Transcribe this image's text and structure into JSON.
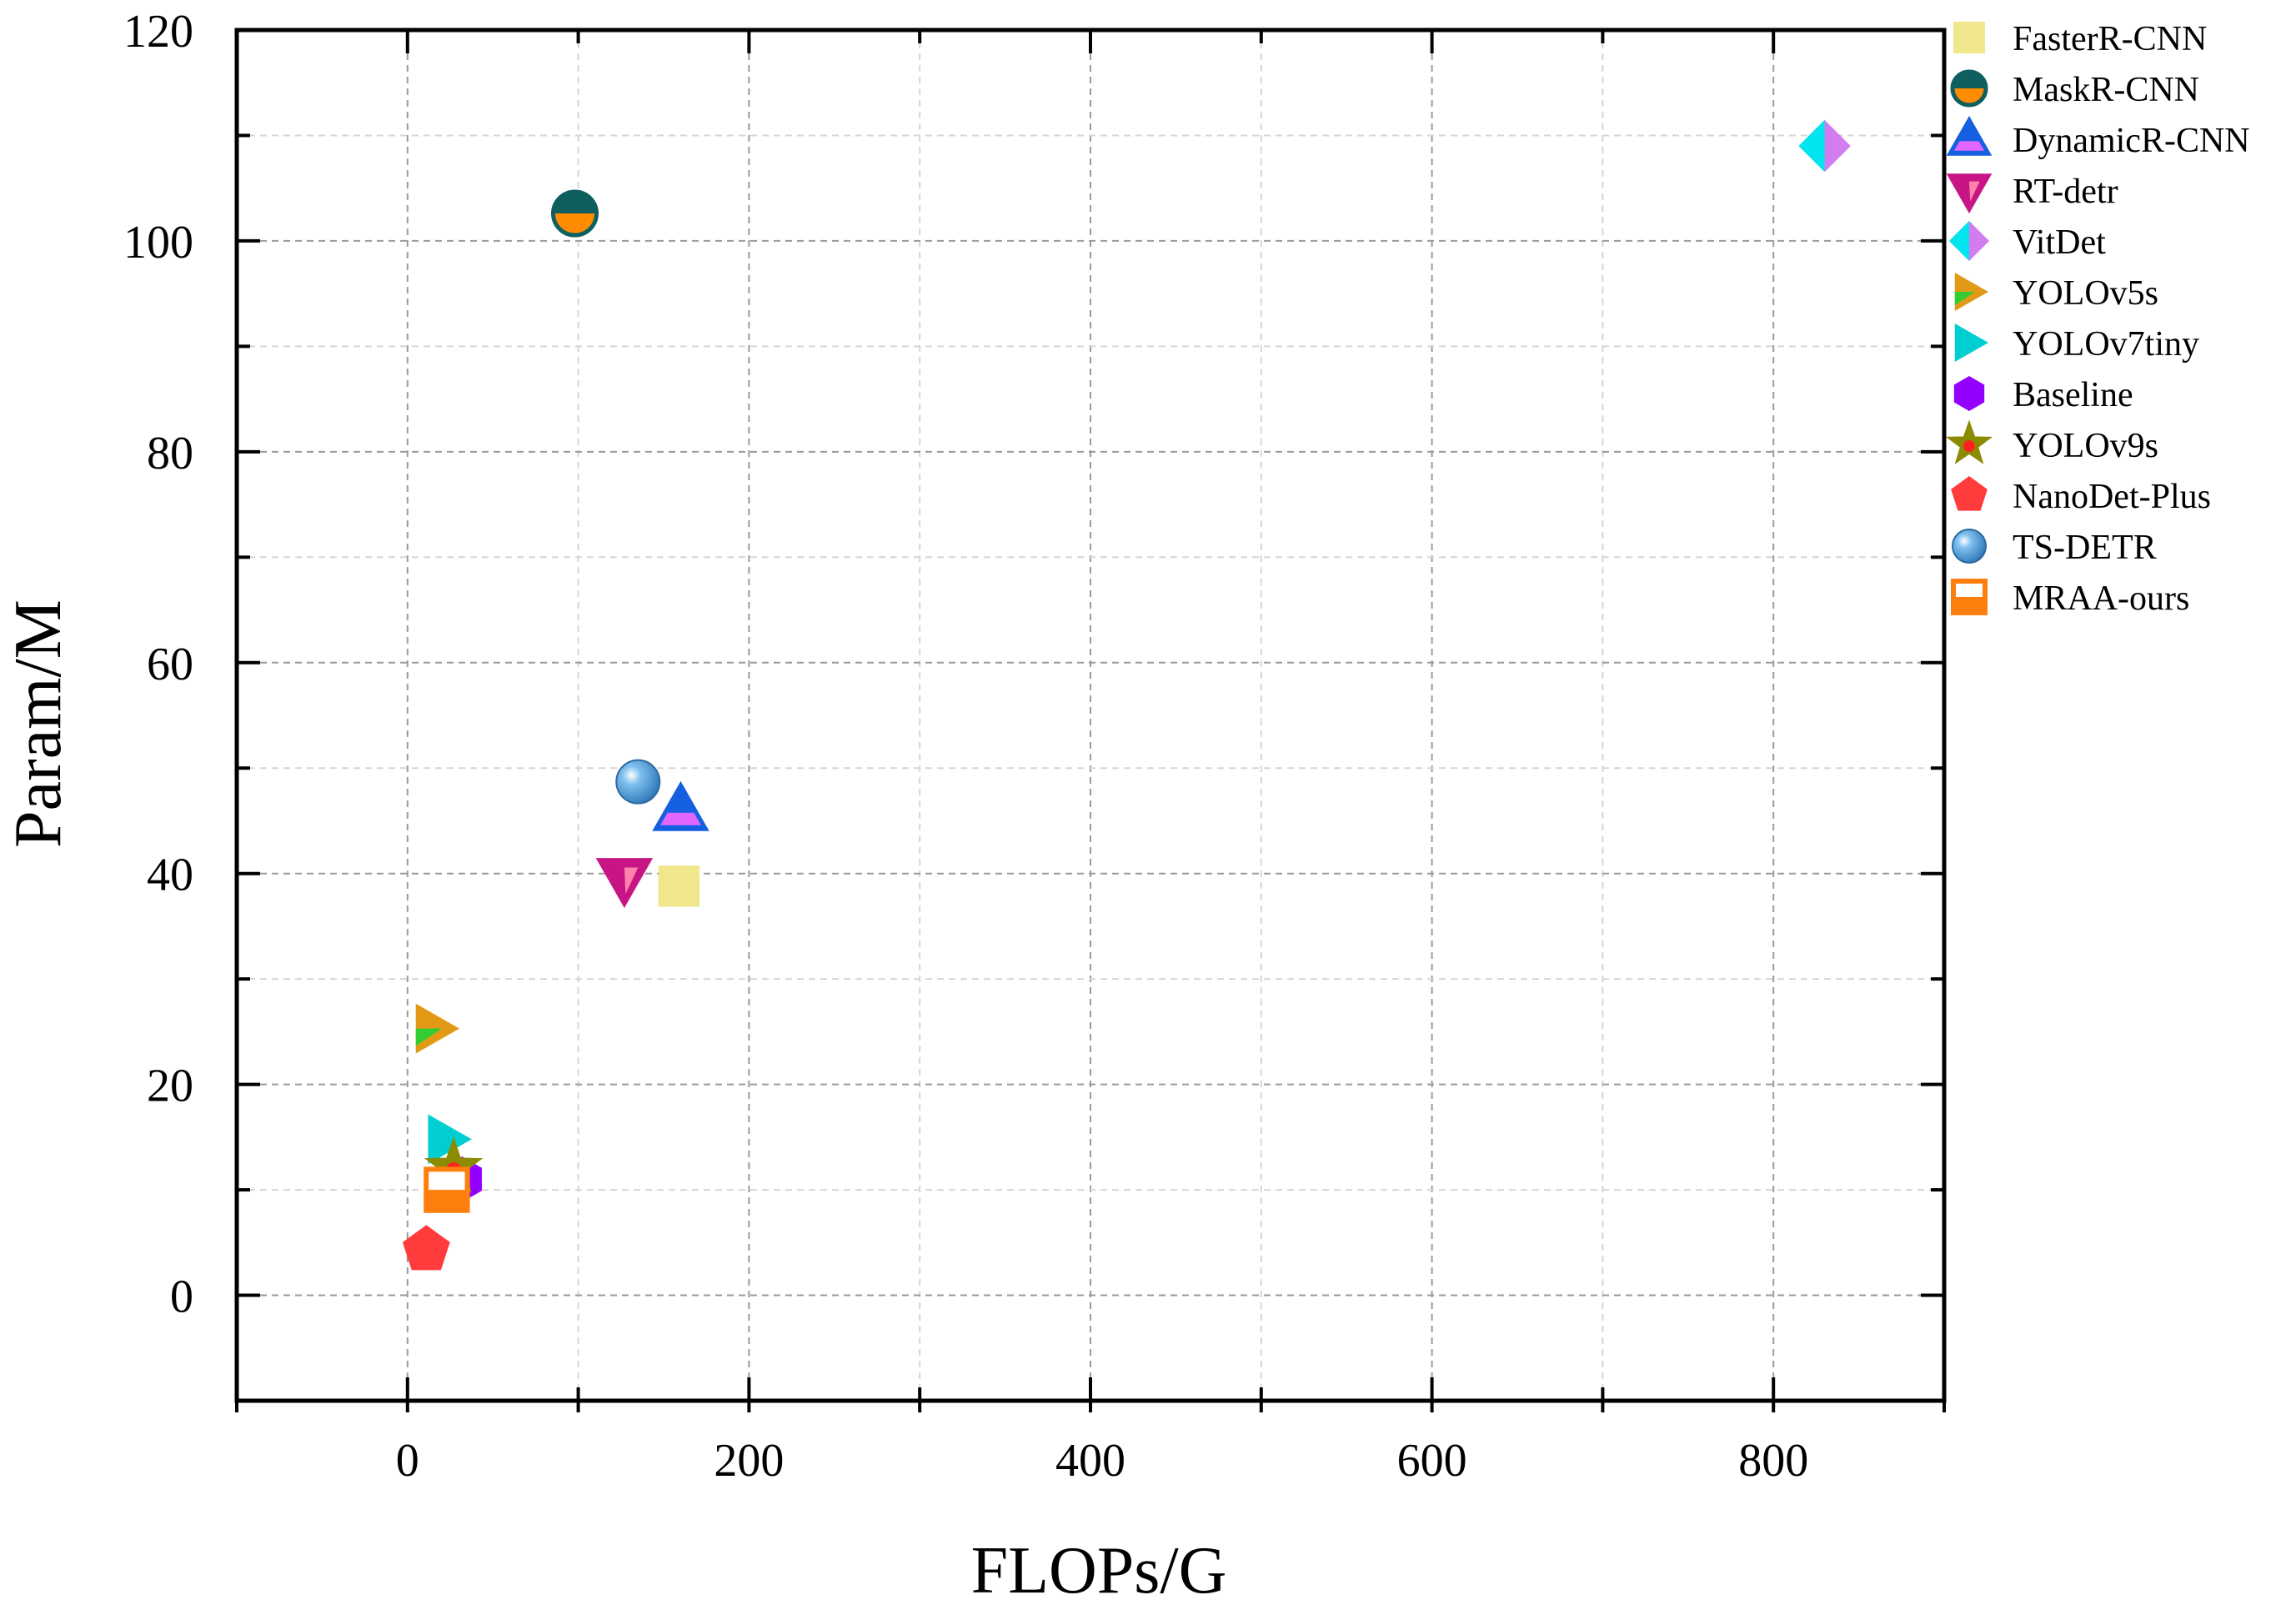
{
  "chart_data": {
    "type": "scatter",
    "title": "",
    "xlabel": "FLOPs/G",
    "ylabel": "Param/M",
    "xlim": [
      -100,
      900
    ],
    "ylim": [
      -10,
      120
    ],
    "xticks": [
      0,
      200,
      400,
      600,
      800
    ],
    "xminor": [
      -100,
      100,
      300,
      500,
      700
    ],
    "yticks": [
      0,
      20,
      40,
      60,
      80,
      100,
      120
    ],
    "yminor": [
      -10,
      10,
      30,
      50,
      70,
      90,
      110
    ],
    "grid": true,
    "legend_position": "top-right, outside plot",
    "series": [
      {
        "name": "FasterR-CNN",
        "marker": "square",
        "colors": [
          "#f0e68c"
        ],
        "x": 159,
        "y": 38.8
      },
      {
        "name": "MaskR-CNN",
        "marker": "circle-half",
        "colors": [
          "#0f5f5f",
          "#ff8c00"
        ],
        "x": 98,
        "y": 102.6
      },
      {
        "name": "DynamicR-CNN",
        "marker": "triangle-up",
        "colors": [
          "#1560e0",
          "#e066ff"
        ],
        "x": 160,
        "y": 46
      },
      {
        "name": "RT-detr",
        "marker": "triangle-down",
        "colors": [
          "#c71585",
          "#ff82ab"
        ],
        "x": 127,
        "y": 39.5
      },
      {
        "name": "VitDet",
        "marker": "diamond",
        "colors": [
          "#00e5ee",
          "#d27cf0"
        ],
        "x": 830,
        "y": 109
      },
      {
        "name": "YOLOv5s",
        "marker": "triangle-right",
        "colors": [
          "#e29a16",
          "#32cd32"
        ],
        "x": 15.8,
        "y": 25.3
      },
      {
        "name": "YOLOv7tiny",
        "marker": "triangle-right",
        "colors": [
          "#00ced1"
        ],
        "x": 23,
        "y": 14.8
      },
      {
        "name": "Baseline",
        "marker": "hexagon",
        "colors": [
          "#9400ff"
        ],
        "x": 32,
        "y": 11
      },
      {
        "name": "YOLOv9s",
        "marker": "star",
        "colors": [
          "#8b8b00",
          "#ff2020"
        ],
        "x": 27,
        "y": 12.1
      },
      {
        "name": "NanoDet-Plus",
        "marker": "pentagon",
        "colors": [
          "#ff3b3b"
        ],
        "x": 11,
        "y": 4.3
      },
      {
        "name": "TS-DETR",
        "marker": "sphere",
        "colors": [
          "#3c8fd0",
          "#ffffff"
        ],
        "x": 135,
        "y": 48.7
      },
      {
        "name": "MRAA-ours",
        "marker": "square-half",
        "colors": [
          "#ff7f0e",
          "#ffffff"
        ],
        "x": 23,
        "y": 10
      }
    ]
  }
}
